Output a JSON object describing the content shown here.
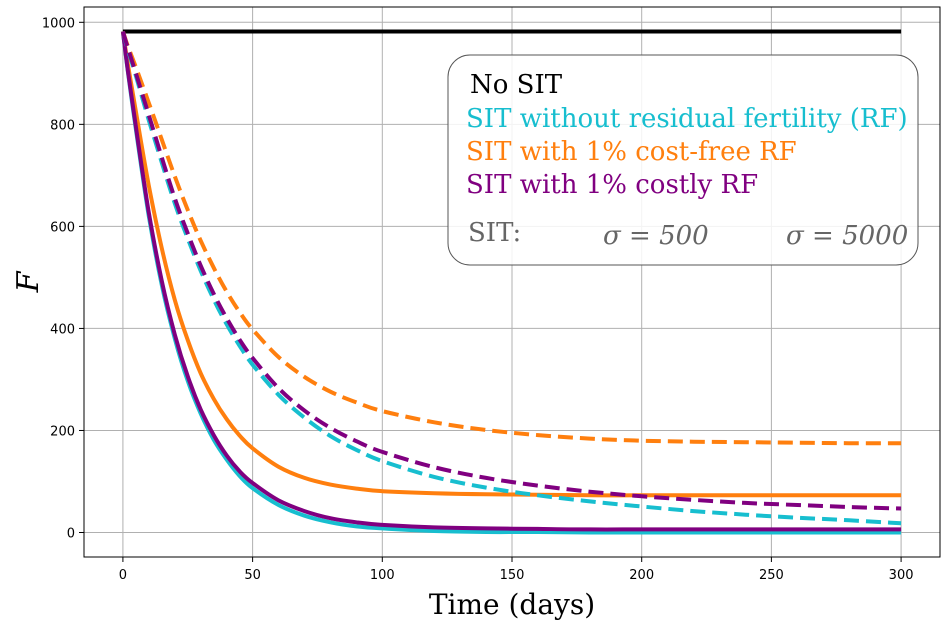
{
  "chart_data": {
    "type": "line",
    "xlabel": "Time (days)",
    "ylabel": "F",
    "xlim": [
      -15,
      315
    ],
    "ylim": [
      -48,
      1030
    ],
    "x_ticks": [
      0,
      50,
      100,
      150,
      200,
      250,
      300
    ],
    "y_ticks": [
      0,
      200,
      400,
      600,
      800,
      1000
    ],
    "grid": true,
    "legend_placement": "top-right",
    "legend": {
      "entries": [
        {
          "label": "No SIT",
          "color": "#000000"
        },
        {
          "label": "SIT without residual fertility (RF)",
          "color": "#17becf"
        },
        {
          "label": "SIT with 1% cost-free RF",
          "color": "#ff7f0e"
        },
        {
          "label": "SIT with 1% costly RF",
          "color": "#800080"
        }
      ],
      "style_row": {
        "label": "SIT:",
        "solid": "σ = 500",
        "dashed": "σ = 5000"
      }
    },
    "x": [
      0,
      2,
      5,
      10,
      15,
      20,
      25,
      30,
      35,
      40,
      45,
      50,
      60,
      70,
      80,
      90,
      100,
      120,
      140,
      160,
      180,
      200,
      220,
      240,
      260,
      280,
      300
    ],
    "series": [
      {
        "key": "nosit",
        "color": "#000000",
        "dash": false,
        "values": [
          982,
          982,
          982,
          982,
          982,
          982,
          982,
          982,
          982,
          982,
          982,
          982,
          982,
          982,
          982,
          982,
          982,
          982,
          982,
          982,
          982,
          982,
          982,
          982,
          982,
          982,
          982
        ]
      },
      {
        "key": "norf-500",
        "color": "#17becf",
        "dash": false,
        "values": [
          982,
          900,
          790,
          620,
          485,
          380,
          297,
          233,
          182,
          143,
          111,
          87,
          54,
          33,
          20,
          12,
          8,
          3,
          1,
          1,
          0,
          0,
          0,
          0,
          0,
          0,
          0
        ]
      },
      {
        "key": "freerf-500",
        "color": "#ff7f0e",
        "dash": false,
        "values": [
          982,
          915,
          825,
          680,
          557,
          456,
          377,
          312,
          262,
          222,
          190,
          165,
          129,
          107,
          94,
          86,
          81,
          77,
          75,
          74,
          73,
          73,
          73,
          73,
          73,
          73,
          73
        ]
      },
      {
        "key": "costrf-500",
        "color": "#800080",
        "dash": false,
        "values": [
          982,
          902,
          795,
          627,
          493,
          388,
          306,
          241,
          191,
          151,
          120,
          97,
          63,
          42,
          28,
          20,
          15,
          10,
          8,
          7,
          6,
          6,
          6,
          6,
          6,
          6,
          6
        ]
      },
      {
        "key": "norf-5000",
        "color": "#17becf",
        "dash": true,
        "values": [
          982,
          945,
          895,
          808,
          725,
          645,
          576,
          513,
          457,
          408,
          366,
          329,
          270,
          225,
          189,
          162,
          140,
          109,
          88,
          73,
          61,
          51,
          42,
          35,
          29,
          24,
          18
        ]
      },
      {
        "key": "freerf-5000",
        "color": "#ff7f0e",
        "dash": true,
        "values": [
          982,
          952,
          912,
          842,
          770,
          698,
          632,
          572,
          519,
          472,
          432,
          398,
          344,
          305,
          276,
          255,
          238,
          216,
          201,
          191,
          184,
          180,
          178,
          177,
          176,
          175,
          175
        ]
      },
      {
        "key": "costrf-5000",
        "color": "#800080",
        "dash": true,
        "values": [
          982,
          948,
          900,
          818,
          735,
          655,
          586,
          523,
          468,
          420,
          378,
          342,
          283,
          239,
          205,
          179,
          158,
          128,
          107,
          92,
          80,
          71,
          64,
          58,
          54,
          50,
          47
        ]
      }
    ]
  }
}
